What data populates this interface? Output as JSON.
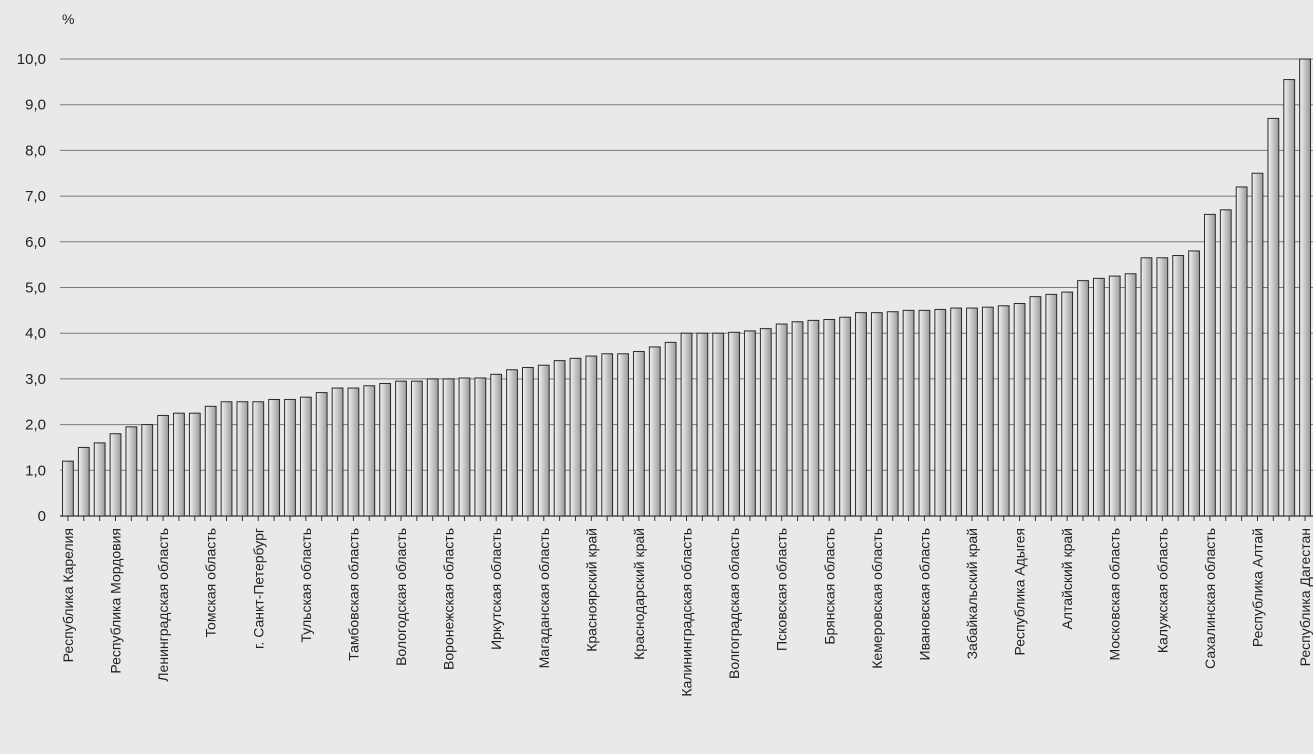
{
  "chart_data": {
    "type": "bar",
    "ylabel": "%",
    "ylim": [
      0,
      10
    ],
    "yticks": [
      "0",
      "1,0",
      "2,0",
      "3,0",
      "4,0",
      "5,0",
      "6,0",
      "7,0",
      "8,0",
      "9,0",
      "10,0"
    ],
    "grid": true,
    "categories": [
      "Республика Карелия",
      "",
      "",
      "Республика Мордовия",
      "",
      "",
      "Ленинградская область",
      "",
      "",
      "Томская область",
      "",
      "",
      "г. Санкт-Петербург",
      "",
      "",
      "Тульская область",
      "",
      "",
      "Тамбовская область",
      "",
      "",
      "Вологодская область",
      "",
      "",
      "Воронежская область",
      "",
      "",
      "Иркутская область",
      "",
      "",
      "Магаданская область",
      "",
      "",
      "Красноярский край",
      "",
      "",
      "Краснодарский край",
      "",
      "",
      "Калининградская область",
      "",
      "",
      "Волгоградская область",
      "",
      "",
      "Псковская область",
      "",
      "",
      "Брянская область",
      "",
      "",
      "Кемеровская область",
      "",
      "",
      "Ивановская область",
      "",
      "",
      "Забайкальский край",
      "",
      "",
      "Республика Адыгея",
      "",
      "",
      "Алтайский край",
      "",
      "",
      "Московская область",
      "",
      "",
      "Калужская область",
      "",
      "",
      "Сахалинская область",
      "",
      "",
      "Республика Алтай",
      "",
      "",
      "Республика Дагестан"
    ],
    "values": [
      1.2,
      1.5,
      1.6,
      1.8,
      1.95,
      2.0,
      2.2,
      2.25,
      2.25,
      2.4,
      2.5,
      2.5,
      2.5,
      2.55,
      2.55,
      2.6,
      2.7,
      2.8,
      2.8,
      2.85,
      2.9,
      2.95,
      2.95,
      3.0,
      3.0,
      3.02,
      3.02,
      3.1,
      3.2,
      3.25,
      3.3,
      3.4,
      3.45,
      3.5,
      3.55,
      3.55,
      3.6,
      3.7,
      3.8,
      4.0,
      4.0,
      4.0,
      4.02,
      4.05,
      4.1,
      4.2,
      4.25,
      4.28,
      4.3,
      4.35,
      4.45,
      4.45,
      4.47,
      4.5,
      4.5,
      4.52,
      4.55,
      4.55,
      4.57,
      4.6,
      4.65,
      4.8,
      4.85,
      4.9,
      5.15,
      5.2,
      5.25,
      5.3,
      5.65,
      5.65,
      5.7,
      5.8,
      6.6,
      6.7,
      7.2,
      7.5,
      8.7,
      9.55,
      10.0
    ]
  }
}
